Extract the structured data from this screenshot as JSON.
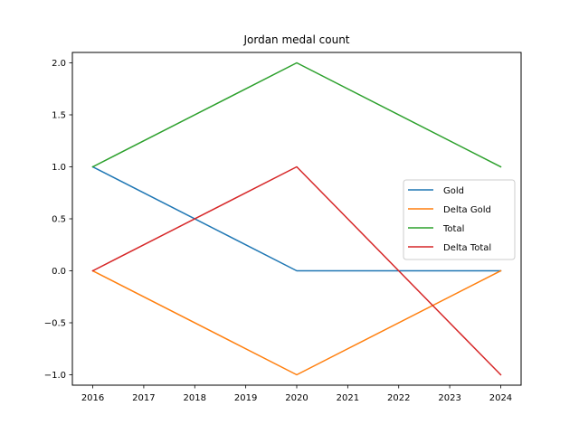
{
  "chart_data": {
    "type": "line",
    "title": "Jordan medal count",
    "xlabel": "",
    "ylabel": "",
    "x": [
      2016,
      2020,
      2024
    ],
    "xticks": [
      "2016",
      "2017",
      "2018",
      "2019",
      "2020",
      "2021",
      "2022",
      "2023",
      "2024"
    ],
    "xlim": [
      2015.6,
      2024.4
    ],
    "yticks": [
      "−1.0",
      "−0.5",
      "0.0",
      "0.5",
      "1.0",
      "1.5",
      "2.0"
    ],
    "ylim": [
      -1.1,
      2.1
    ],
    "grid": false,
    "legend_position": "center-right",
    "series": [
      {
        "name": "Gold",
        "values": [
          1,
          0,
          0
        ],
        "color": "#1f77b4"
      },
      {
        "name": "Delta Gold",
        "values": [
          0,
          -1,
          0
        ],
        "color": "#ff7f0e"
      },
      {
        "name": "Total",
        "values": [
          1,
          2,
          1
        ],
        "color": "#2ca02c"
      },
      {
        "name": "Delta Total",
        "values": [
          0,
          1,
          -1
        ],
        "color": "#d62728"
      }
    ]
  }
}
